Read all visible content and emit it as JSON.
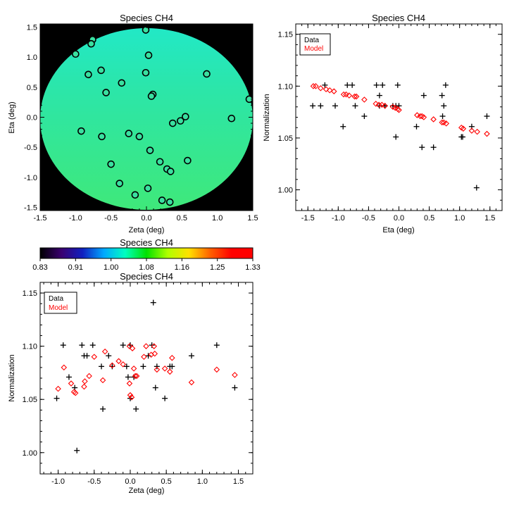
{
  "chart_data": [
    {
      "type": "scatter",
      "panel": "top-left",
      "title": "Species CH4",
      "xlabel": "Zeta (deg)",
      "ylabel": "Eta (deg)",
      "xlim": [
        -1.5,
        1.5
      ],
      "ylim": [
        -1.55,
        1.55
      ],
      "xticks": [
        "-1.5",
        "-1.0",
        "-0.5",
        "0.0",
        "0.5",
        "1.0",
        "1.5"
      ],
      "yticks": [
        "-1.5",
        "-1.0",
        "-0.5",
        "0.0",
        "0.5",
        "1.0",
        "1.5"
      ],
      "background": "#000000",
      "field_color": "#2de59a",
      "field_color_top": "#2ae8b8",
      "field_shape": "circle of radius 1.5 deg",
      "marker": "open circle",
      "points": [
        {
          "x": -0.01,
          "y": 1.45
        },
        {
          "x": -0.76,
          "y": 1.29
        },
        {
          "x": -0.78,
          "y": 1.22
        },
        {
          "x": -1.0,
          "y": 1.05
        },
        {
          "x": 0.03,
          "y": 1.03
        },
        {
          "x": -0.64,
          "y": 0.78
        },
        {
          "x": -0.82,
          "y": 0.71
        },
        {
          "x": -0.01,
          "y": 0.74
        },
        {
          "x": 0.85,
          "y": 0.72
        },
        {
          "x": -0.35,
          "y": 0.57
        },
        {
          "x": -0.57,
          "y": 0.41
        },
        {
          "x": 0.09,
          "y": 0.38
        },
        {
          "x": 0.07,
          "y": 0.35
        },
        {
          "x": 1.45,
          "y": 0.3
        },
        {
          "x": 0.55,
          "y": 0.01
        },
        {
          "x": 1.2,
          "y": -0.02
        },
        {
          "x": 0.48,
          "y": -0.06
        },
        {
          "x": 0.37,
          "y": -0.1
        },
        {
          "x": -0.92,
          "y": -0.23
        },
        {
          "x": -0.25,
          "y": -0.27
        },
        {
          "x": -0.1,
          "y": -0.32
        },
        {
          "x": -0.63,
          "y": -0.32
        },
        {
          "x": 0.05,
          "y": -0.55
        },
        {
          "x": 0.58,
          "y": -0.72
        },
        {
          "x": 0.19,
          "y": -0.74
        },
        {
          "x": -0.5,
          "y": -0.78
        },
        {
          "x": 0.29,
          "y": -0.86
        },
        {
          "x": 0.34,
          "y": -0.9
        },
        {
          "x": -0.38,
          "y": -1.1
        },
        {
          "x": 0.02,
          "y": -1.18
        },
        {
          "x": -0.16,
          "y": -1.29
        },
        {
          "x": 0.22,
          "y": -1.38
        },
        {
          "x": 0.33,
          "y": -1.41
        }
      ]
    },
    {
      "type": "colorbar",
      "panel": "middle-left",
      "title": "Species CH4",
      "range": [
        0.83,
        1.33
      ],
      "tick_labels": [
        "0.83",
        "0.91",
        "1.00",
        "1.08",
        "1.16",
        "1.25",
        "1.33"
      ],
      "colormap": [
        "#000000",
        "#3a0070",
        "#1020c0",
        "#00a8ff",
        "#00ffc0",
        "#00e000",
        "#b0ff00",
        "#ffe000",
        "#ff6000",
        "#ff0000",
        "#ff0000"
      ]
    },
    {
      "type": "scatter",
      "panel": "top-right",
      "title": "Species CH4",
      "xlabel": "Eta (deg)",
      "ylabel": "Normalization",
      "xlim": [
        -1.7,
        1.7
      ],
      "ylim": [
        0.98,
        1.16
      ],
      "xticks": [
        "-1.5",
        "-1.0",
        "-0.5",
        "0.0",
        "0.5",
        "1.0",
        "1.5"
      ],
      "yticks": [
        "1.00",
        "1.05",
        "1.10",
        "1.15"
      ],
      "legend": {
        "position": "top-left",
        "entries": [
          {
            "label": "Data",
            "color": "#000000"
          },
          {
            "label": "Model",
            "color": "#ff0000"
          }
        ]
      },
      "series": [
        {
          "name": "Data",
          "marker": "plus",
          "color": "#000000",
          "points": [
            {
              "x": -1.42,
              "y": 1.081
            },
            {
              "x": -1.29,
              "y": 1.081
            },
            {
              "x": -1.22,
              "y": 1.101
            },
            {
              "x": -1.05,
              "y": 1.081
            },
            {
              "x": -0.92,
              "y": 1.061
            },
            {
              "x": -0.85,
              "y": 1.101
            },
            {
              "x": -0.77,
              "y": 1.101
            },
            {
              "x": -0.72,
              "y": 1.081
            },
            {
              "x": -0.57,
              "y": 1.071
            },
            {
              "x": -0.37,
              "y": 1.101
            },
            {
              "x": -0.32,
              "y": 1.091
            },
            {
              "x": -0.27,
              "y": 1.101
            },
            {
              "x": -0.32,
              "y": 1.081
            },
            {
              "x": -0.23,
              "y": 1.081
            },
            {
              "x": -0.1,
              "y": 1.081
            },
            {
              "x": -0.05,
              "y": 1.081
            },
            {
              "x": -0.02,
              "y": 1.101
            },
            {
              "x": 0.0,
              "y": 1.081
            },
            {
              "x": -0.05,
              "y": 1.051
            },
            {
              "x": 0.29,
              "y": 1.061
            },
            {
              "x": 0.38,
              "y": 1.041
            },
            {
              "x": 0.41,
              "y": 1.091
            },
            {
              "x": 0.57,
              "y": 1.041
            },
            {
              "x": 0.71,
              "y": 1.091
            },
            {
              "x": 0.72,
              "y": 1.071
            },
            {
              "x": 0.74,
              "y": 1.081
            },
            {
              "x": 0.77,
              "y": 1.101
            },
            {
              "x": 1.03,
              "y": 1.051
            },
            {
              "x": 1.05,
              "y": 1.051
            },
            {
              "x": 1.2,
              "y": 1.061
            },
            {
              "x": 1.28,
              "y": 1.002
            },
            {
              "x": 1.45,
              "y": 1.071
            }
          ]
        },
        {
          "name": "Model",
          "marker": "diamond",
          "color": "#ff0000",
          "points": [
            {
              "x": -1.41,
              "y": 1.1
            },
            {
              "x": -1.37,
              "y": 1.1
            },
            {
              "x": -1.29,
              "y": 1.098
            },
            {
              "x": -1.2,
              "y": 1.097
            },
            {
              "x": -1.14,
              "y": 1.096
            },
            {
              "x": -1.07,
              "y": 1.095
            },
            {
              "x": -0.91,
              "y": 1.092
            },
            {
              "x": -0.87,
              "y": 1.092
            },
            {
              "x": -0.82,
              "y": 1.091
            },
            {
              "x": -0.73,
              "y": 1.09
            },
            {
              "x": -0.7,
              "y": 1.09
            },
            {
              "x": -0.57,
              "y": 1.087
            },
            {
              "x": -0.38,
              "y": 1.083
            },
            {
              "x": -0.33,
              "y": 1.082
            },
            {
              "x": -0.28,
              "y": 1.082
            },
            {
              "x": -0.23,
              "y": 1.081
            },
            {
              "x": -0.1,
              "y": 1.08
            },
            {
              "x": -0.06,
              "y": 1.079
            },
            {
              "x": -0.02,
              "y": 1.078
            },
            {
              "x": 0.0,
              "y": 1.077
            },
            {
              "x": 0.3,
              "y": 1.072
            },
            {
              "x": 0.35,
              "y": 1.071
            },
            {
              "x": 0.38,
              "y": 1.071
            },
            {
              "x": 0.41,
              "y": 1.07
            },
            {
              "x": 0.57,
              "y": 1.068
            },
            {
              "x": 0.71,
              "y": 1.065
            },
            {
              "x": 0.74,
              "y": 1.065
            },
            {
              "x": 0.78,
              "y": 1.064
            },
            {
              "x": 1.03,
              "y": 1.06
            },
            {
              "x": 1.06,
              "y": 1.059
            },
            {
              "x": 1.2,
              "y": 1.057
            },
            {
              "x": 1.29,
              "y": 1.056
            },
            {
              "x": 1.45,
              "y": 1.054
            }
          ]
        }
      ]
    },
    {
      "type": "scatter",
      "panel": "bottom-left",
      "title": "Species CH4",
      "xlabel": "Zeta (deg)",
      "ylabel": "Normalization",
      "xlim": [
        -1.25,
        1.7
      ],
      "ylim": [
        0.98,
        1.16
      ],
      "xticks": [
        "-1.0",
        "-0.5",
        "0.0",
        "0.5",
        "1.0",
        "1.5"
      ],
      "yticks": [
        "1.00",
        "1.05",
        "1.10",
        "1.15"
      ],
      "legend": {
        "position": "top-left",
        "entries": [
          {
            "label": "Data",
            "color": "#000000"
          },
          {
            "label": "Model",
            "color": "#ff0000"
          }
        ]
      },
      "series": [
        {
          "name": "Data",
          "marker": "plus",
          "color": "#000000",
          "points": [
            {
              "x": -1.02,
              "y": 1.051
            },
            {
              "x": -0.93,
              "y": 1.101
            },
            {
              "x": -0.85,
              "y": 1.071
            },
            {
              "x": -0.77,
              "y": 1.061
            },
            {
              "x": -0.74,
              "y": 1.002
            },
            {
              "x": -0.67,
              "y": 1.101
            },
            {
              "x": -0.64,
              "y": 1.091
            },
            {
              "x": -0.6,
              "y": 1.091
            },
            {
              "x": -0.52,
              "y": 1.101
            },
            {
              "x": -0.4,
              "y": 1.081
            },
            {
              "x": -0.38,
              "y": 1.041
            },
            {
              "x": -0.3,
              "y": 1.091
            },
            {
              "x": -0.25,
              "y": 1.081
            },
            {
              "x": -0.1,
              "y": 1.101
            },
            {
              "x": -0.05,
              "y": 1.081
            },
            {
              "x": -0.03,
              "y": 1.071
            },
            {
              "x": 0.0,
              "y": 1.051
            },
            {
              "x": 0.0,
              "y": 1.101
            },
            {
              "x": 0.05,
              "y": 1.071
            },
            {
              "x": 0.08,
              "y": 1.041
            },
            {
              "x": 0.18,
              "y": 1.081
            },
            {
              "x": 0.25,
              "y": 1.091
            },
            {
              "x": 0.3,
              "y": 1.101
            },
            {
              "x": 0.32,
              "y": 1.141
            },
            {
              "x": 0.35,
              "y": 1.061
            },
            {
              "x": 0.37,
              "y": 1.081
            },
            {
              "x": 0.48,
              "y": 1.051
            },
            {
              "x": 0.55,
              "y": 1.081
            },
            {
              "x": 0.58,
              "y": 1.081
            },
            {
              "x": 0.85,
              "y": 1.091
            },
            {
              "x": 1.2,
              "y": 1.101
            },
            {
              "x": 1.45,
              "y": 1.061
            }
          ]
        },
        {
          "name": "Model",
          "marker": "diamond",
          "color": "#ff0000",
          "points": [
            {
              "x": -1.0,
              "y": 1.06
            },
            {
              "x": -0.92,
              "y": 1.08
            },
            {
              "x": -0.82,
              "y": 1.065
            },
            {
              "x": -0.78,
              "y": 1.057
            },
            {
              "x": -0.76,
              "y": 1.056
            },
            {
              "x": -0.64,
              "y": 1.062
            },
            {
              "x": -0.63,
              "y": 1.067
            },
            {
              "x": -0.57,
              "y": 1.072
            },
            {
              "x": -0.5,
              "y": 1.09
            },
            {
              "x": -0.38,
              "y": 1.068
            },
            {
              "x": -0.35,
              "y": 1.095
            },
            {
              "x": -0.25,
              "y": 1.082
            },
            {
              "x": -0.16,
              "y": 1.086
            },
            {
              "x": -0.1,
              "y": 1.083
            },
            {
              "x": -0.01,
              "y": 1.1
            },
            {
              "x": -0.01,
              "y": 1.065
            },
            {
              "x": 0.0,
              "y": 1.054
            },
            {
              "x": 0.02,
              "y": 1.052
            },
            {
              "x": 0.03,
              "y": 1.098
            },
            {
              "x": 0.05,
              "y": 1.079
            },
            {
              "x": 0.07,
              "y": 1.072
            },
            {
              "x": 0.09,
              "y": 1.072
            },
            {
              "x": 0.19,
              "y": 1.09
            },
            {
              "x": 0.22,
              "y": 1.1
            },
            {
              "x": 0.29,
              "y": 1.092
            },
            {
              "x": 0.33,
              "y": 1.1
            },
            {
              "x": 0.34,
              "y": 1.093
            },
            {
              "x": 0.37,
              "y": 1.078
            },
            {
              "x": 0.48,
              "y": 1.079
            },
            {
              "x": 0.55,
              "y": 1.076
            },
            {
              "x": 0.58,
              "y": 1.089
            },
            {
              "x": 0.85,
              "y": 1.066
            },
            {
              "x": 1.2,
              "y": 1.078
            },
            {
              "x": 1.45,
              "y": 1.073
            }
          ]
        }
      ]
    }
  ]
}
